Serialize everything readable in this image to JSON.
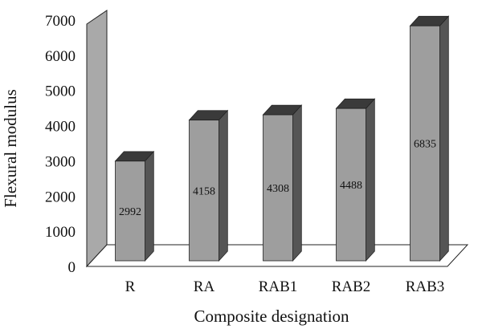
{
  "chart_data": {
    "type": "bar",
    "style": "3d",
    "title": "",
    "xlabel": "Composite designation",
    "ylabel": "Flexural modulus",
    "categories": [
      "R",
      "RA",
      "RAB1",
      "RAB2",
      "RAB3"
    ],
    "values": [
      2992,
      4158,
      4308,
      4488,
      6835
    ],
    "data_labels": [
      "2992",
      "4158",
      "4308",
      "4488",
      "6835"
    ],
    "yticks": [
      0,
      1000,
      2000,
      3000,
      4000,
      5000,
      6000,
      7000
    ],
    "ylim": [
      0,
      7000
    ],
    "grid": false,
    "legend": "none",
    "colors": {
      "bar_front": "#9e9e9e",
      "bar_side": "#555555",
      "bar_top": "#3a3a3a",
      "wall": "#a9a9a9",
      "floor": "#ffffff",
      "outline": "#222222"
    }
  }
}
